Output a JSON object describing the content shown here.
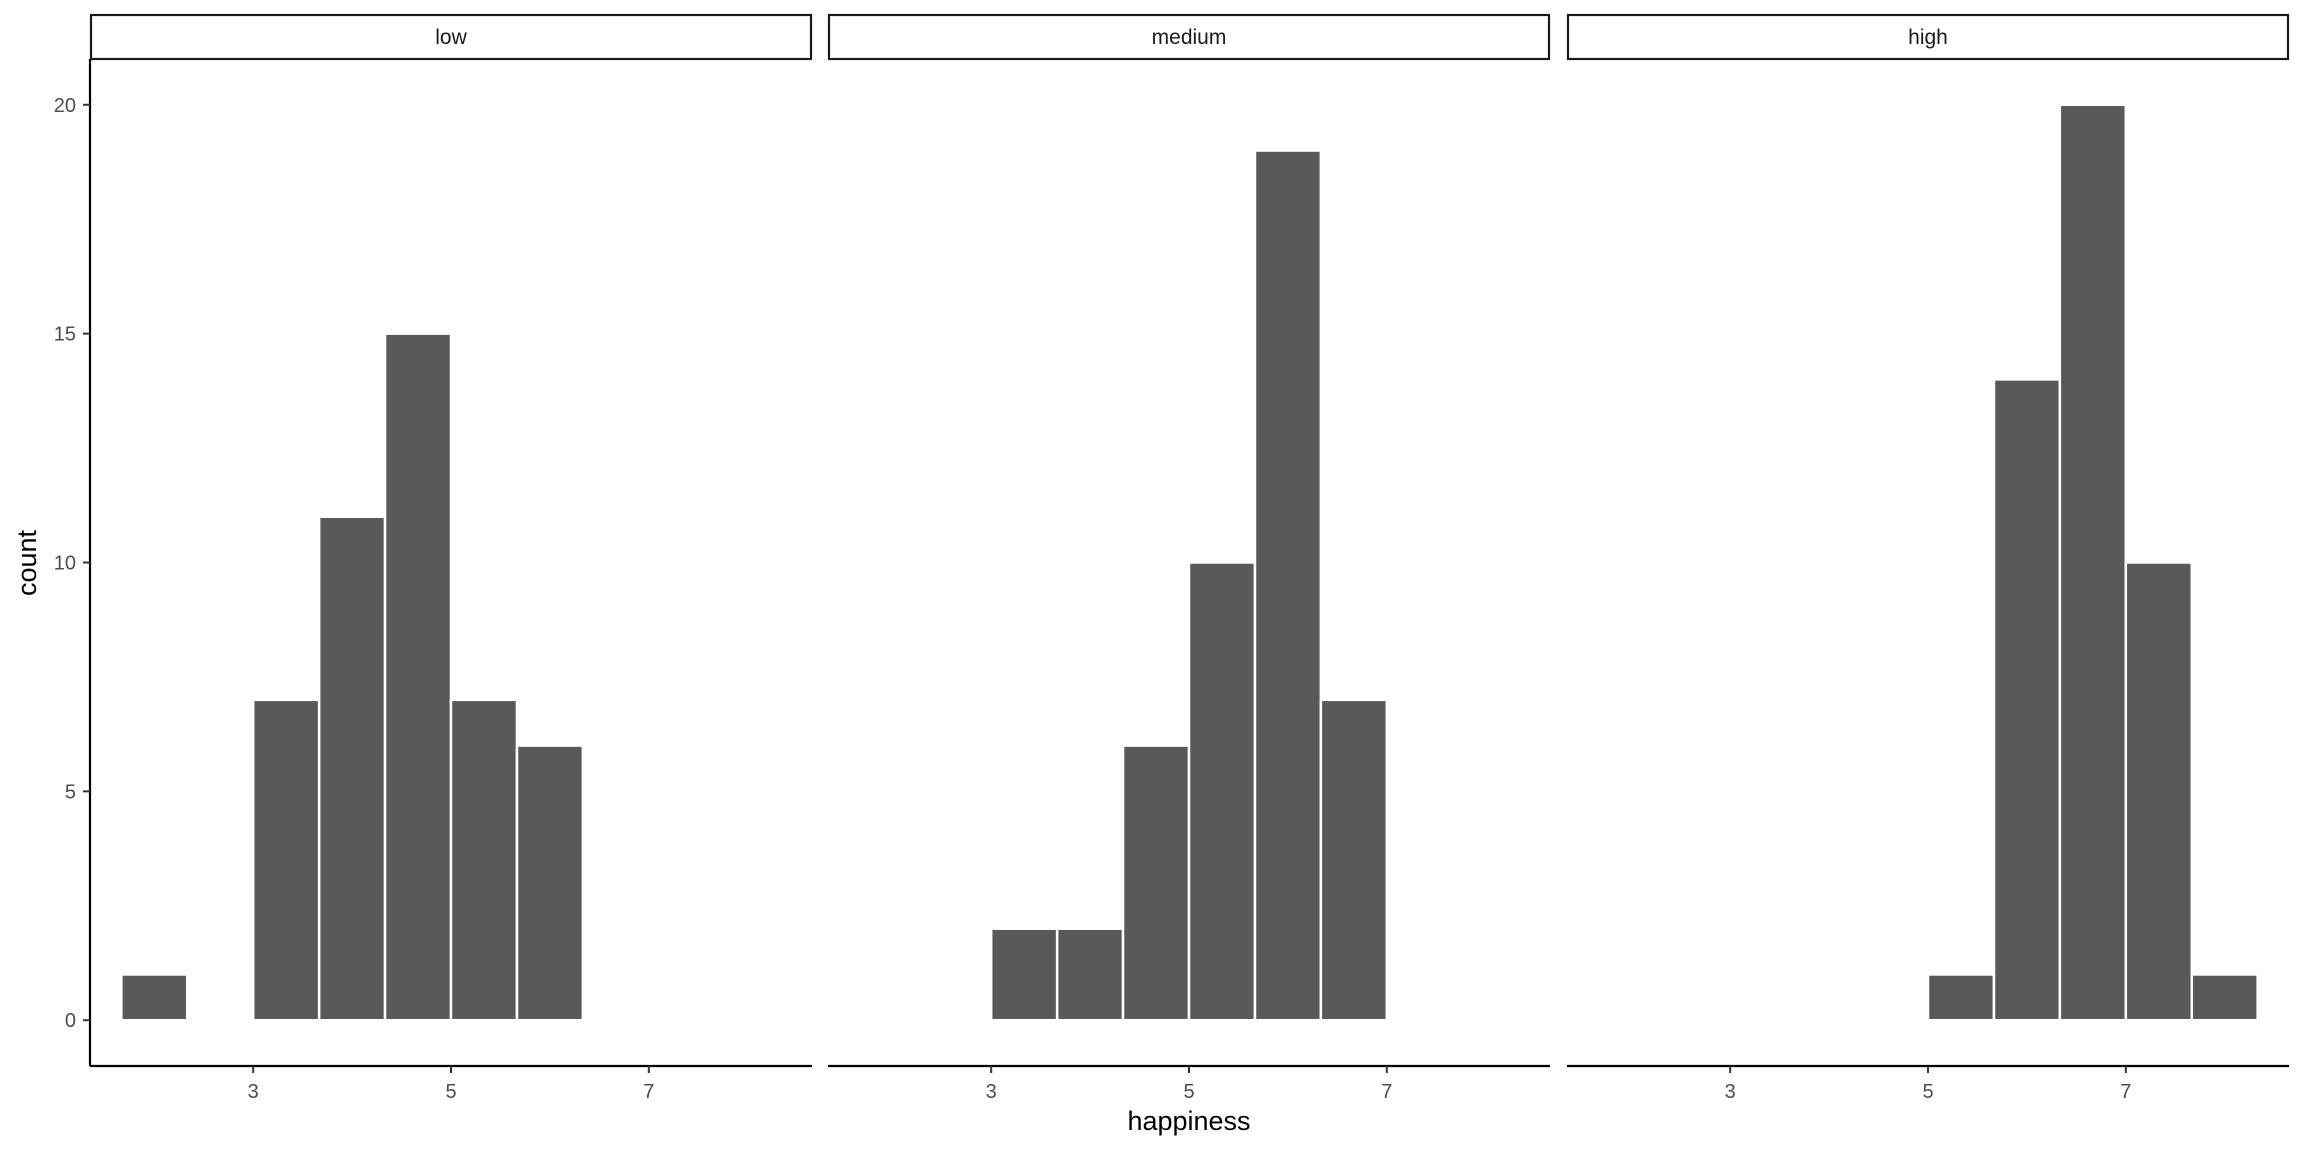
{
  "chart_data": {
    "type": "bar",
    "subtype": "faceted-histogram",
    "xlabel": "happiness",
    "ylabel": "count",
    "xlim": [
      1.35,
      8.65
    ],
    "ylim": [
      -1,
      21
    ],
    "x_ticks": [
      3,
      5,
      7
    ],
    "y_ticks": [
      0,
      5,
      10,
      15,
      20
    ],
    "bin_width": 0.667,
    "grid": false,
    "bar_color": "#595959",
    "facets": [
      {
        "label": "low",
        "bins": [
          {
            "x0": 1.667,
            "x1": 2.333,
            "count": 1
          },
          {
            "x0": 3.0,
            "x1": 3.667,
            "count": 7
          },
          {
            "x0": 3.667,
            "x1": 4.333,
            "count": 11
          },
          {
            "x0": 4.333,
            "x1": 5.0,
            "count": 15
          },
          {
            "x0": 5.0,
            "x1": 5.667,
            "count": 7
          },
          {
            "x0": 5.667,
            "x1": 6.333,
            "count": 6
          }
        ]
      },
      {
        "label": "medium",
        "bins": [
          {
            "x0": 3.0,
            "x1": 3.667,
            "count": 2
          },
          {
            "x0": 3.667,
            "x1": 4.333,
            "count": 2
          },
          {
            "x0": 4.333,
            "x1": 5.0,
            "count": 6
          },
          {
            "x0": 5.0,
            "x1": 5.667,
            "count": 10
          },
          {
            "x0": 5.667,
            "x1": 6.333,
            "count": 19
          },
          {
            "x0": 6.333,
            "x1": 7.0,
            "count": 7
          }
        ]
      },
      {
        "label": "high",
        "bins": [
          {
            "x0": 5.0,
            "x1": 5.667,
            "count": 1
          },
          {
            "x0": 5.667,
            "x1": 6.333,
            "count": 14
          },
          {
            "x0": 6.333,
            "x1": 7.0,
            "count": 20
          },
          {
            "x0": 7.0,
            "x1": 7.667,
            "count": 10
          },
          {
            "x0": 7.667,
            "x1": 8.333,
            "count": 1
          }
        ]
      }
    ]
  }
}
